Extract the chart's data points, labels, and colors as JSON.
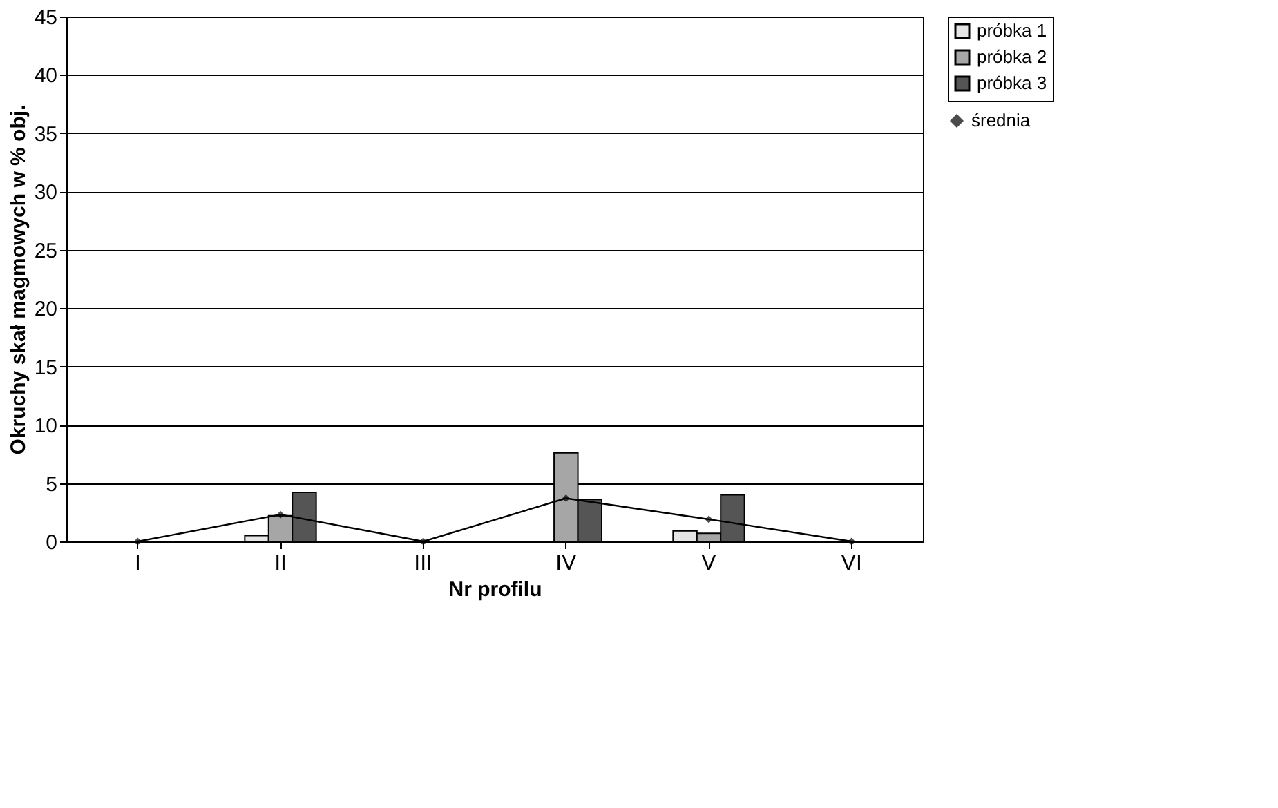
{
  "chart_data": {
    "type": "bar",
    "xlabel": "Nr profilu",
    "ylabel": "Okruchy skał magmowych w % obj.",
    "categories": [
      "I",
      "II",
      "III",
      "IV",
      "V",
      "VI"
    ],
    "series": [
      {
        "name": "próbka 1",
        "color": "#e6e6e6",
        "values": [
          0,
          0.5,
          0,
          0,
          0.9,
          0
        ]
      },
      {
        "name": "próbka 2",
        "color": "#a6a6a6",
        "values": [
          0,
          2.2,
          0,
          7.6,
          0.7,
          0
        ]
      },
      {
        "name": "próbka 3",
        "color": "#555555",
        "values": [
          0,
          4.2,
          0,
          3.6,
          4.0,
          0
        ]
      },
      {
        "name": "średnia",
        "type": "line",
        "color": "#000000",
        "marker": "diamond",
        "values": [
          0,
          2.3,
          0,
          3.7,
          1.9,
          0
        ]
      }
    ],
    "ylim": [
      0,
      45
    ],
    "yticks": [
      0,
      5,
      10,
      15,
      20,
      25,
      30,
      35,
      40,
      45
    ],
    "grid": "y",
    "legend": "right"
  }
}
